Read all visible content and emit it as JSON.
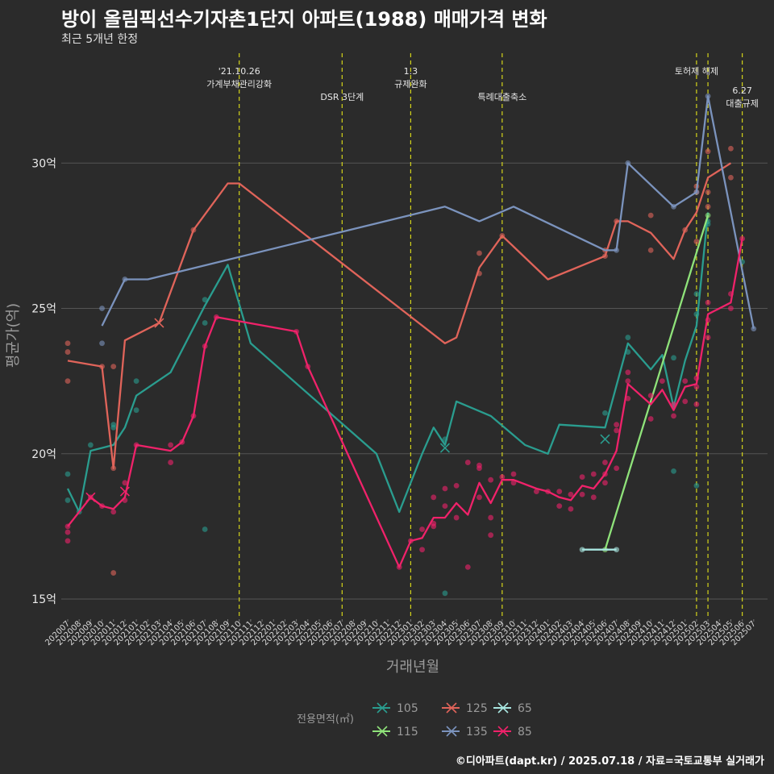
{
  "title": "방이 올림픽선수기자촌1단지 아파트(1988) 매매가격 변화",
  "subtitle": "최근 5개년 한정",
  "credit": "©디아파트(dapt.kr) / 2025.07.18 / 자료=국토교통부 실거래가",
  "colors": {
    "background": "#2b2b2b",
    "grid": "#555555",
    "event_line": "#d4d41a",
    "text": "#eaeaea",
    "axis_text": "#9a9a9a"
  },
  "chart_data": {
    "type": "line",
    "xlabel": "거래년월",
    "ylabel": "평균가(억)",
    "ylim": [
      14,
      35
    ],
    "y_ticks": [
      15,
      20,
      25,
      30
    ],
    "y_tick_labels": [
      "15억",
      "20억",
      "25억",
      "30억"
    ],
    "grid": true,
    "legend_title": "전용면적(㎡)",
    "legend_position": "bottom",
    "x": [
      "202007",
      "202008",
      "202009",
      "202010",
      "202011",
      "202012",
      "202101",
      "202102",
      "202103",
      "202104",
      "202105",
      "202106",
      "202107",
      "202108",
      "202109",
      "202110",
      "202111",
      "202112",
      "202201",
      "202202",
      "202203",
      "202204",
      "202205",
      "202206",
      "202207",
      "202208",
      "202209",
      "202210",
      "202211",
      "202212",
      "202301",
      "202302",
      "202303",
      "202304",
      "202305",
      "202306",
      "202307",
      "202308",
      "202309",
      "202310",
      "202311",
      "202312",
      "202401",
      "202402",
      "202403",
      "202404",
      "202405",
      "202406",
      "202407",
      "202408",
      "202409",
      "202410",
      "202411",
      "202412",
      "202501",
      "202502",
      "202503",
      "202504",
      "202505",
      "202506",
      "202507"
    ],
    "events": [
      {
        "x": "202110",
        "label": "'21.10.26\n가계부채관리강화",
        "row": 0
      },
      {
        "x": "202207",
        "label": "DSR 3단계",
        "row": 1
      },
      {
        "x": "202301",
        "label": "1.3\n규제완화",
        "row": 0
      },
      {
        "x": "202309",
        "label": "특례대출축소",
        "row": 1
      },
      {
        "x": "202502",
        "label": "토허제 해제",
        "row": 0
      },
      {
        "x": "202503",
        "label": "",
        "row": 0
      },
      {
        "x": "202506",
        "label": "6.27\n대출규제",
        "row": 2
      }
    ],
    "series": [
      {
        "name": "105",
        "color": "#2a9d8f",
        "line": [
          [
            "202007",
            18.8
          ],
          [
            "202008",
            18.0
          ],
          [
            "202009",
            20.1
          ],
          [
            "202011",
            20.3
          ],
          [
            "202012",
            20.9
          ],
          [
            "202101",
            22.0
          ],
          [
            "202104",
            22.8
          ],
          [
            "202107",
            25.1
          ],
          [
            "202109",
            26.5
          ],
          [
            "202111",
            23.8
          ],
          [
            "202210",
            20.0
          ],
          [
            "202212",
            18.0
          ],
          [
            "202302",
            20.0
          ],
          [
            "202303",
            20.9
          ],
          [
            "202304",
            20.3
          ],
          [
            "202305",
            21.8
          ],
          [
            "202308",
            21.3
          ],
          [
            "202311",
            20.3
          ],
          [
            "202401",
            20.0
          ],
          [
            "202402",
            21.0
          ],
          [
            "202406",
            20.9
          ],
          [
            "202408",
            23.8
          ],
          [
            "202410",
            22.9
          ],
          [
            "202411",
            23.4
          ],
          [
            "202412",
            21.6
          ],
          [
            "202501",
            23.2
          ],
          [
            "202502",
            24.4
          ],
          [
            "202503",
            28.3
          ]
        ],
        "points": [
          [
            "202007",
            19.3
          ],
          [
            "202007",
            18.4
          ],
          [
            "202008",
            18.0
          ],
          [
            "202009",
            20.3
          ],
          [
            "202011",
            20.9
          ],
          [
            "202011",
            21.0
          ],
          [
            "202101",
            21.5
          ],
          [
            "202101",
            22.5
          ],
          [
            "202107",
            17.4
          ],
          [
            "202107",
            25.3
          ],
          [
            "202107",
            24.5
          ],
          [
            "202304",
            15.2
          ],
          [
            "202304",
            20.5
          ],
          [
            "202406",
            21.4
          ],
          [
            "202408",
            23.5
          ],
          [
            "202408",
            24.0
          ],
          [
            "202412",
            19.4
          ],
          [
            "202412",
            23.3
          ],
          [
            "202502",
            18.9
          ],
          [
            "202502",
            24.8
          ],
          [
            "202502",
            25.5
          ],
          [
            "202503",
            28.0
          ],
          [
            "202503",
            27.9
          ],
          [
            "202506",
            26.6
          ]
        ],
        "cross": [
          [
            "202304",
            20.2
          ],
          [
            "202406",
            20.5
          ]
        ]
      },
      {
        "name": "115",
        "color": "#8fe37a",
        "line": [
          [
            "202406",
            16.7
          ],
          [
            "202503",
            28.2
          ]
        ],
        "points": [
          [
            "202406",
            16.7
          ],
          [
            "202503",
            28.2
          ]
        ],
        "cross": []
      },
      {
        "name": "125",
        "color": "#e0645a",
        "line": [
          [
            "202007",
            23.2
          ],
          [
            "202010",
            23.0
          ],
          [
            "202011",
            19.5
          ],
          [
            "202012",
            23.9
          ],
          [
            "202103",
            24.5
          ],
          [
            "202106",
            27.7
          ],
          [
            "202109",
            29.3
          ],
          [
            "202110",
            29.3
          ],
          [
            "202304",
            23.8
          ],
          [
            "202305",
            24.0
          ],
          [
            "202307",
            26.4
          ],
          [
            "202309",
            27.5
          ],
          [
            "202401",
            26.0
          ],
          [
            "202406",
            26.8
          ],
          [
            "202407",
            28.0
          ],
          [
            "202408",
            28.0
          ],
          [
            "202410",
            27.6
          ],
          [
            "202412",
            26.7
          ],
          [
            "202501",
            27.7
          ],
          [
            "202502",
            28.3
          ],
          [
            "202503",
            29.5
          ],
          [
            "202505",
            30.0
          ]
        ],
        "points": [
          [
            "202007",
            23.8
          ],
          [
            "202007",
            23.5
          ],
          [
            "202007",
            22.5
          ],
          [
            "202010",
            23.0
          ],
          [
            "202011",
            15.9
          ],
          [
            "202011",
            19.5
          ],
          [
            "202011",
            23.0
          ],
          [
            "202106",
            27.7
          ],
          [
            "202307",
            26.2
          ],
          [
            "202307",
            26.9
          ],
          [
            "202309",
            27.5
          ],
          [
            "202406",
            26.8
          ],
          [
            "202406",
            27.0
          ],
          [
            "202407",
            28.0
          ],
          [
            "202410",
            28.2
          ],
          [
            "202410",
            27.0
          ],
          [
            "202501",
            27.7
          ],
          [
            "202502",
            29.0
          ],
          [
            "202502",
            29.2
          ],
          [
            "202502",
            27.3
          ],
          [
            "202503",
            30.4
          ],
          [
            "202503",
            29.0
          ],
          [
            "202503",
            28.5
          ],
          [
            "202505",
            30.5
          ],
          [
            "202505",
            29.5
          ]
        ],
        "cross": [
          [
            "202103",
            24.5
          ]
        ]
      },
      {
        "name": "135",
        "color": "#7b93bd",
        "line": [
          [
            "202010",
            24.4
          ],
          [
            "202012",
            26.0
          ],
          [
            "202102",
            26.0
          ],
          [
            "202304",
            28.5
          ],
          [
            "202307",
            28.0
          ],
          [
            "202310",
            28.5
          ],
          [
            "202406",
            27.0
          ],
          [
            "202407",
            27.0
          ],
          [
            "202408",
            30.0
          ],
          [
            "202412",
            28.5
          ],
          [
            "202502",
            29.0
          ],
          [
            "202503",
            32.3
          ],
          [
            "202507",
            24.3
          ]
        ],
        "points": [
          [
            "202010",
            25.0
          ],
          [
            "202010",
            23.8
          ],
          [
            "202012",
            26.0
          ],
          [
            "202407",
            27.0
          ],
          [
            "202408",
            30.0
          ],
          [
            "202412",
            28.5
          ],
          [
            "202502",
            29.0
          ],
          [
            "202503",
            32.3
          ],
          [
            "202507",
            24.3
          ]
        ],
        "cross": []
      },
      {
        "name": "65",
        "color": "#a8e6e0",
        "line": [
          [
            "202404",
            16.7
          ],
          [
            "202407",
            16.7
          ]
        ],
        "points": [
          [
            "202404",
            16.7
          ],
          [
            "202407",
            16.7
          ]
        ],
        "cross": []
      },
      {
        "name": "85",
        "color": "#f0226a",
        "line": [
          [
            "202007",
            17.5
          ],
          [
            "202008",
            18.0
          ],
          [
            "202009",
            18.5
          ],
          [
            "202010",
            18.2
          ],
          [
            "202011",
            18.1
          ],
          [
            "202012",
            18.5
          ],
          [
            "202101",
            20.3
          ],
          [
            "202104",
            20.1
          ],
          [
            "202105",
            20.4
          ],
          [
            "202106",
            21.3
          ],
          [
            "202107",
            23.7
          ],
          [
            "202108",
            24.7
          ],
          [
            "202203",
            24.2
          ],
          [
            "202204",
            23.0
          ],
          [
            "202212",
            16.1
          ],
          [
            "202301",
            17.0
          ],
          [
            "202302",
            17.1
          ],
          [
            "202303",
            17.8
          ],
          [
            "202304",
            17.8
          ],
          [
            "202305",
            18.3
          ],
          [
            "202306",
            17.9
          ],
          [
            "202307",
            19.0
          ],
          [
            "202308",
            18.3
          ],
          [
            "202309",
            19.1
          ],
          [
            "202310",
            19.1
          ],
          [
            "202312",
            18.8
          ],
          [
            "202401",
            18.7
          ],
          [
            "202402",
            18.5
          ],
          [
            "202403",
            18.4
          ],
          [
            "202404",
            18.9
          ],
          [
            "202405",
            18.8
          ],
          [
            "202406",
            19.3
          ],
          [
            "202407",
            20.1
          ],
          [
            "202408",
            22.4
          ],
          [
            "202410",
            21.7
          ],
          [
            "202411",
            22.2
          ],
          [
            "202412",
            21.5
          ],
          [
            "202501",
            22.3
          ],
          [
            "202502",
            22.4
          ],
          [
            "202503",
            24.8
          ],
          [
            "202505",
            25.2
          ],
          [
            "202506",
            27.4
          ]
        ],
        "points": [
          [
            "202007",
            17.5
          ],
          [
            "202007",
            17.3
          ],
          [
            "202007",
            17.0
          ],
          [
            "202009",
            18.5
          ],
          [
            "202010",
            18.2
          ],
          [
            "202011",
            18.0
          ],
          [
            "202012",
            18.4
          ],
          [
            "202012",
            19.0
          ],
          [
            "202101",
            20.3
          ],
          [
            "202104",
            20.3
          ],
          [
            "202104",
            19.7
          ],
          [
            "202105",
            20.4
          ],
          [
            "202106",
            21.3
          ],
          [
            "202107",
            23.7
          ],
          [
            "202108",
            24.7
          ],
          [
            "202203",
            24.2
          ],
          [
            "202204",
            23.0
          ],
          [
            "202212",
            16.1
          ],
          [
            "202301",
            17.0
          ],
          [
            "202302",
            16.7
          ],
          [
            "202302",
            17.4
          ],
          [
            "202303",
            17.5
          ],
          [
            "202303",
            17.6
          ],
          [
            "202303",
            18.5
          ],
          [
            "202304",
            18.2
          ],
          [
            "202304",
            18.8
          ],
          [
            "202305",
            17.8
          ],
          [
            "202305",
            18.9
          ],
          [
            "202306",
            16.1
          ],
          [
            "202306",
            19.7
          ],
          [
            "202307",
            19.6
          ],
          [
            "202307",
            19.5
          ],
          [
            "202307",
            18.5
          ],
          [
            "202308",
            17.2
          ],
          [
            "202308",
            17.8
          ],
          [
            "202308",
            19.1
          ],
          [
            "202309",
            19.2
          ],
          [
            "202310",
            19.3
          ],
          [
            "202310",
            19.0
          ],
          [
            "202312",
            18.7
          ],
          [
            "202401",
            18.7
          ],
          [
            "202402",
            18.2
          ],
          [
            "202402",
            18.7
          ],
          [
            "202403",
            18.1
          ],
          [
            "202403",
            18.6
          ],
          [
            "202404",
            19.2
          ],
          [
            "202404",
            18.6
          ],
          [
            "202405",
            18.5
          ],
          [
            "202405",
            19.3
          ],
          [
            "202406",
            19.7
          ],
          [
            "202406",
            19.0
          ],
          [
            "202406",
            19.3
          ],
          [
            "202407",
            21.0
          ],
          [
            "202407",
            20.8
          ],
          [
            "202407",
            19.5
          ],
          [
            "202408",
            22.8
          ],
          [
            "202408",
            22.5
          ],
          [
            "202408",
            21.9
          ],
          [
            "202410",
            22.0
          ],
          [
            "202410",
            21.2
          ],
          [
            "202411",
            22.5
          ],
          [
            "202412",
            21.7
          ],
          [
            "202412",
            21.3
          ],
          [
            "202501",
            22.5
          ],
          [
            "202501",
            21.8
          ],
          [
            "202502",
            22.6
          ],
          [
            "202502",
            21.7
          ],
          [
            "202502",
            22.3
          ],
          [
            "202503",
            25.2
          ],
          [
            "202503",
            24.0
          ],
          [
            "202503",
            24.6
          ],
          [
            "202505",
            25.5
          ],
          [
            "202505",
            25.0
          ],
          [
            "202506",
            27.4
          ]
        ],
        "cross": [
          [
            "202009",
            18.5
          ],
          [
            "202012",
            18.7
          ]
        ]
      }
    ]
  }
}
